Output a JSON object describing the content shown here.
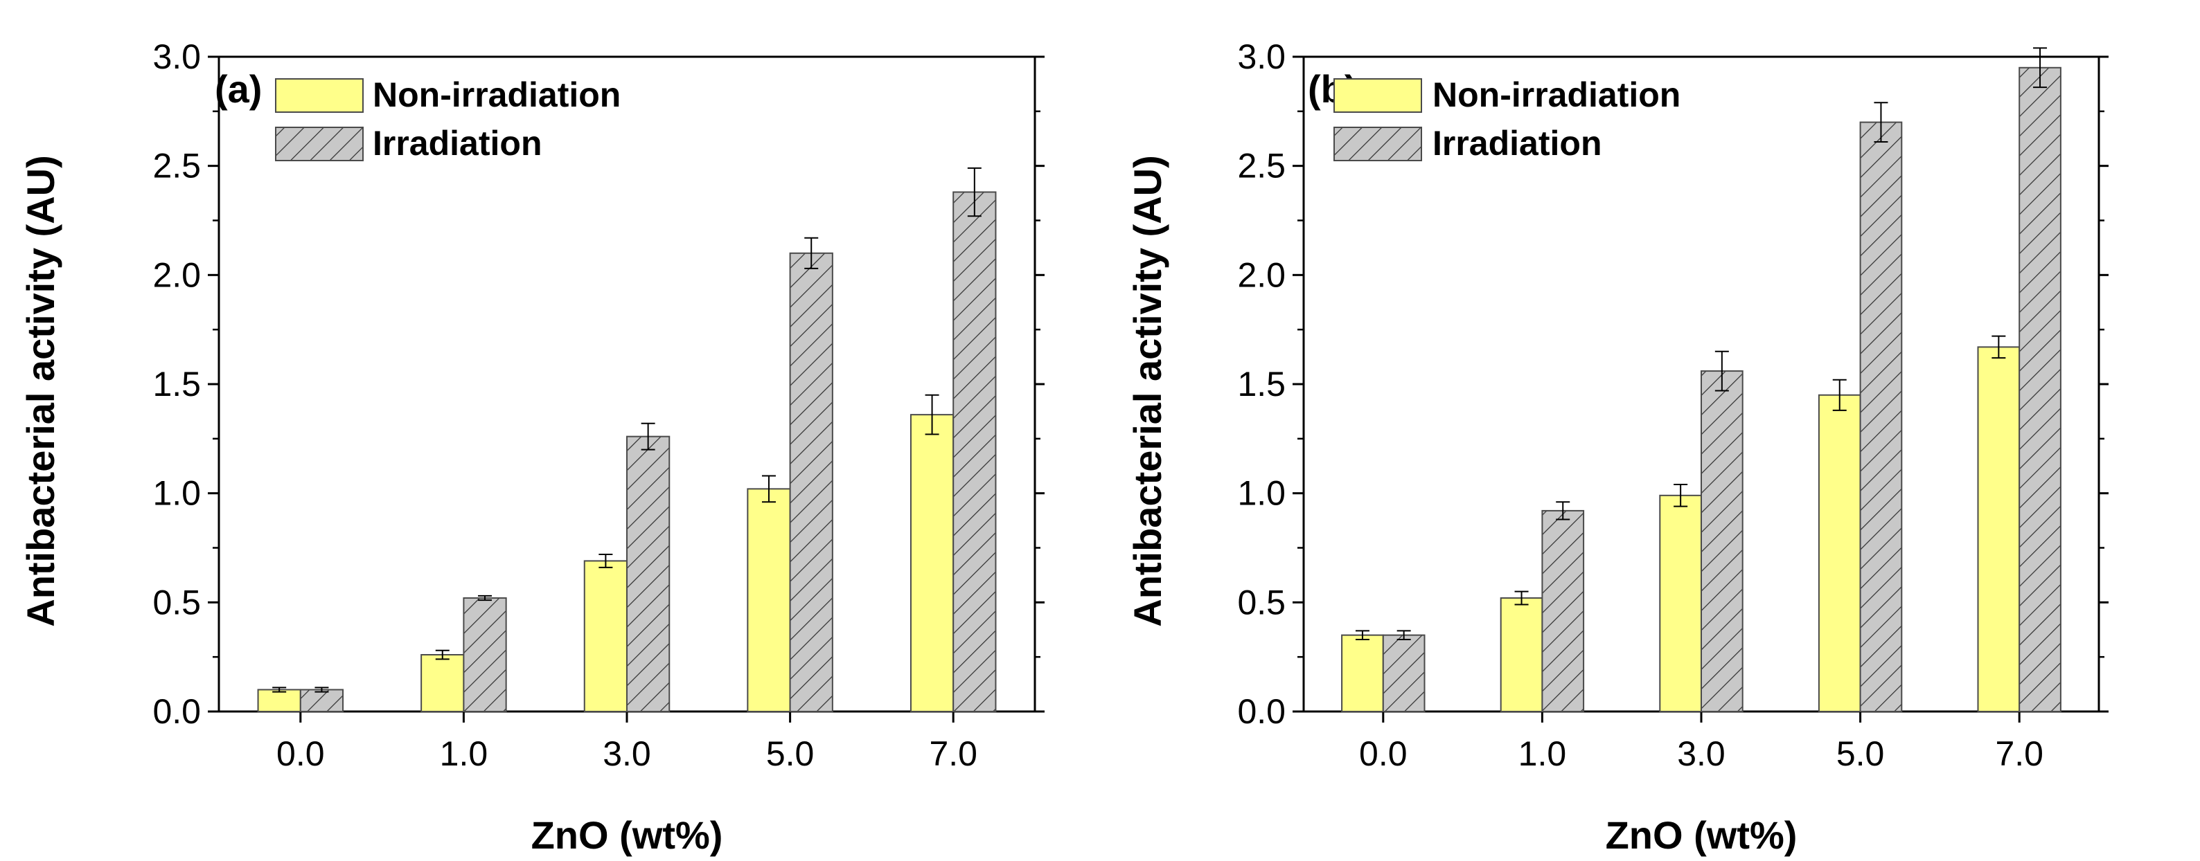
{
  "chart_data": [
    {
      "type": "bar",
      "panel_label": "(a)",
      "title": "",
      "categories": [
        "0.0",
        "1.0",
        "3.0",
        "5.0",
        "7.0"
      ],
      "series": [
        {
          "name": "Non-irradiation",
          "values": [
            0.1,
            0.26,
            0.69,
            1.02,
            1.36
          ],
          "errors": [
            0.01,
            0.02,
            0.03,
            0.06,
            0.09
          ],
          "color": "#ffff8a",
          "pattern": "solid"
        },
        {
          "name": "Irradiation",
          "values": [
            0.1,
            0.52,
            1.26,
            2.1,
            2.38
          ],
          "errors": [
            0.01,
            0.01,
            0.06,
            0.07,
            0.11
          ],
          "color": "#c8c8c8",
          "pattern": "hatched"
        }
      ],
      "xlabel": "ZnO (wt%)",
      "ylabel": "Antibacterial activity (AU)",
      "ylim": [
        0,
        3.0
      ],
      "yticks": [
        "0.0",
        "0.5",
        "1.0",
        "1.5",
        "2.0",
        "2.5",
        "3.0"
      ],
      "legend": "top-left",
      "grid": false
    },
    {
      "type": "bar",
      "panel_label": "(b)",
      "title": "",
      "categories": [
        "0.0",
        "1.0",
        "3.0",
        "5.0",
        "7.0"
      ],
      "series": [
        {
          "name": "Non-irradiation",
          "values": [
            0.35,
            0.52,
            0.99,
            1.45,
            1.67
          ],
          "errors": [
            0.02,
            0.03,
            0.05,
            0.07,
            0.05
          ],
          "color": "#ffff8a",
          "pattern": "solid"
        },
        {
          "name": "Irradiation",
          "values": [
            0.35,
            0.92,
            1.56,
            2.7,
            2.95
          ],
          "errors": [
            0.02,
            0.04,
            0.09,
            0.09,
            0.09
          ],
          "color": "#c8c8c8",
          "pattern": "hatched"
        }
      ],
      "xlabel": "ZnO (wt%)",
      "ylabel": "Antibacterial activity (AU)",
      "ylim": [
        0,
        3.0
      ],
      "yticks": [
        "0.0",
        "0.5",
        "1.0",
        "1.5",
        "2.0",
        "2.5",
        "3.0"
      ],
      "legend": "top-left",
      "grid": false
    }
  ]
}
